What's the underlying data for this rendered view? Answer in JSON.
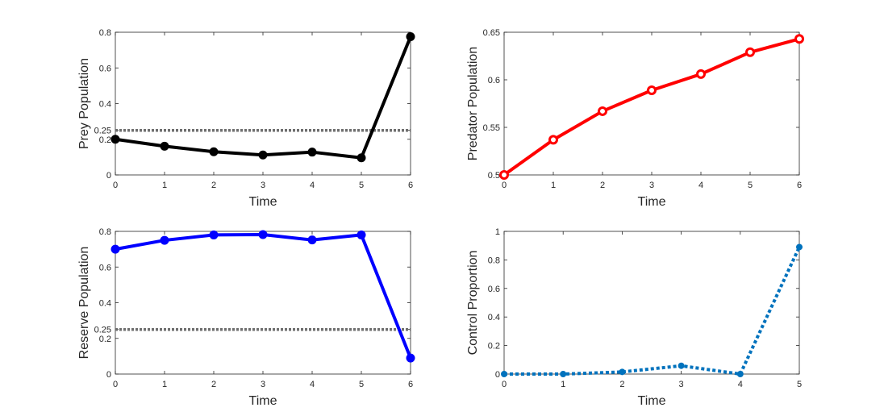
{
  "chart_data": [
    {
      "id": "prey",
      "type": "line",
      "xlabel": "Time",
      "ylabel": "Prey Population",
      "xlim": [
        0,
        6
      ],
      "ylim": [
        0,
        0.8
      ],
      "xticks": [
        "0",
        "1",
        "2",
        "3",
        "4",
        "5",
        "6"
      ],
      "yticks": [
        {
          "value": 0,
          "label": "0"
        },
        {
          "value": 0.2,
          "label": "0.2"
        },
        {
          "value": 0.25,
          "label": "0.25"
        },
        {
          "value": 0.4,
          "label": "0.4"
        },
        {
          "value": 0.6,
          "label": "0.6"
        },
        {
          "value": 0.8,
          "label": "0.8"
        }
      ],
      "series": [
        {
          "name": "Prey",
          "color": "#000000",
          "style": "solid",
          "marker": "filled",
          "x": [
            0,
            1,
            2,
            3,
            4,
            5,
            6
          ],
          "y": [
            0.2,
            0.161,
            0.13,
            0.112,
            0.128,
            0.096,
            0.775
          ]
        }
      ],
      "reference_line": {
        "y": 0.25,
        "color": "#6f6f6f",
        "style": "dotted"
      }
    },
    {
      "id": "predator",
      "type": "line",
      "xlabel": "Time",
      "ylabel": "Predator Population",
      "xlim": [
        0,
        6
      ],
      "ylim": [
        0.5,
        0.65
      ],
      "xticks": [
        "0",
        "1",
        "2",
        "3",
        "4",
        "5",
        "6"
      ],
      "yticks": [
        {
          "value": 0.5,
          "label": "0.5"
        },
        {
          "value": 0.55,
          "label": "0.55"
        },
        {
          "value": 0.6,
          "label": "0.6"
        },
        {
          "value": 0.65,
          "label": "0.65"
        }
      ],
      "series": [
        {
          "name": "Predator",
          "color": "#ff0000",
          "style": "solid",
          "marker": "open",
          "x": [
            0,
            1,
            2,
            3,
            4,
            5,
            6
          ],
          "y": [
            0.5,
            0.537,
            0.567,
            0.589,
            0.606,
            0.629,
            0.643
          ]
        }
      ]
    },
    {
      "id": "reserve",
      "type": "line",
      "xlabel": "Time",
      "ylabel": "Reserve Population",
      "xlim": [
        0,
        6
      ],
      "ylim": [
        0,
        0.8
      ],
      "xticks": [
        "0",
        "1",
        "2",
        "3",
        "4",
        "5",
        "6"
      ],
      "yticks": [
        {
          "value": 0,
          "label": "0"
        },
        {
          "value": 0.2,
          "label": "0.2"
        },
        {
          "value": 0.25,
          "label": "0.25"
        },
        {
          "value": 0.4,
          "label": "0.4"
        },
        {
          "value": 0.6,
          "label": "0.6"
        },
        {
          "value": 0.8,
          "label": "0.8"
        }
      ],
      "series": [
        {
          "name": "Reserve",
          "color": "#0000ff",
          "style": "solid",
          "marker": "filled",
          "x": [
            0,
            1,
            2,
            3,
            4,
            5,
            6
          ],
          "y": [
            0.7,
            0.75,
            0.78,
            0.782,
            0.752,
            0.78,
            0.09
          ]
        }
      ],
      "reference_line": {
        "y": 0.25,
        "color": "#6f6f6f",
        "style": "dotted"
      }
    },
    {
      "id": "control",
      "type": "line",
      "xlabel": "Time",
      "ylabel": "Control Proportion",
      "xlim": [
        0,
        5
      ],
      "ylim": [
        0,
        1
      ],
      "xticks": [
        "0",
        "1",
        "2",
        "3",
        "4",
        "5"
      ],
      "yticks": [
        {
          "value": 0,
          "label": "0"
        },
        {
          "value": 0.2,
          "label": "0.2"
        },
        {
          "value": 0.4,
          "label": "0.4"
        },
        {
          "value": 0.6,
          "label": "0.6"
        },
        {
          "value": 0.8,
          "label": "0.8"
        },
        {
          "value": 1,
          "label": "1"
        }
      ],
      "series": [
        {
          "name": "Control",
          "color": "#0072bd",
          "style": "dotted",
          "marker": "small",
          "x": [
            0,
            1,
            2,
            3,
            4,
            5
          ],
          "y": [
            0,
            0,
            0.015,
            0.058,
            0,
            0.89
          ]
        }
      ]
    }
  ]
}
